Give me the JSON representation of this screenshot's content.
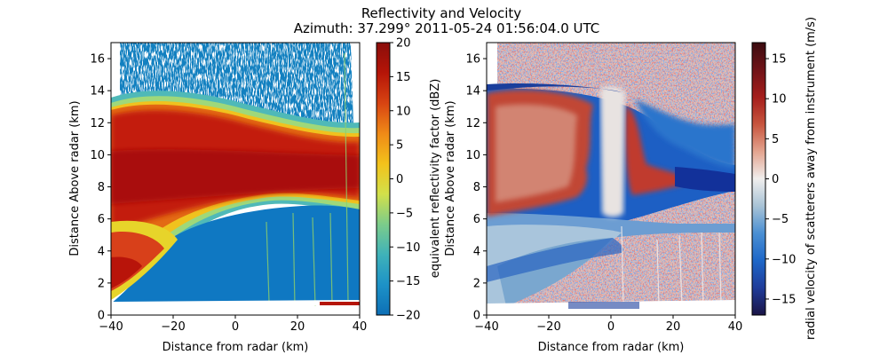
{
  "title_line1": "Reflectivity and Velocity",
  "title_line2": "Azimuth: 37.299°  2011-05-24 01:56:04.0 UTC",
  "chart_data": [
    {
      "type": "heatmap",
      "field": "reflectivity",
      "xlabel": "Distance from radar (km)",
      "ylabel": "Distance Above radar  (km)",
      "xlim": [
        -40,
        40
      ],
      "ylim": [
        0,
        17
      ],
      "xticks": [
        -40,
        -20,
        0,
        20,
        40
      ],
      "yticks": [
        0,
        2,
        4,
        6,
        8,
        10,
        12,
        14,
        16
      ],
      "colorbar": {
        "label": "equivalent reflectivity factor (dBZ)",
        "range": [
          -20,
          20
        ],
        "ticks": [
          -20,
          -15,
          -10,
          -5,
          0,
          5,
          10,
          15,
          20
        ],
        "colors": [
          "#0d6fb6",
          "#1d92c7",
          "#3fb2b9",
          "#7ccc8a",
          "#d2e04a",
          "#f3c21b",
          "#ef8a17",
          "#d84412",
          "#b51508",
          "#8a0d0a"
        ]
      },
      "features": [
        {
          "name": "strong reflectivity band",
          "z_range_km": [
            7,
            12.5
          ],
          "value_dbz": 15
        },
        {
          "name": "weak upper echoes",
          "z_range_km": [
            12.5,
            17
          ],
          "value_dbz": -15
        },
        {
          "name": "low-level echo",
          "z_range_km": [
            1,
            6
          ],
          "value_dbz": -15
        }
      ]
    },
    {
      "type": "heatmap",
      "field": "velocity",
      "xlabel": "Distance from radar (km)",
      "ylabel": "Distance Above radar  (km)",
      "xlim": [
        -40,
        40
      ],
      "ylim": [
        0,
        17
      ],
      "xticks": [
        -40,
        -20,
        0,
        20,
        40
      ],
      "yticks": [
        0,
        2,
        4,
        6,
        8,
        10,
        12,
        14,
        16
      ],
      "colorbar": {
        "label": "radial velocity of scatterers away from instrument (m/s)",
        "range": [
          -17,
          17
        ],
        "ticks": [
          -15,
          -10,
          -5,
          0,
          5,
          10,
          15
        ],
        "colors": [
          "#1a1446",
          "#1f3c9a",
          "#1e67c8",
          "#4a8fd3",
          "#a8c3d6",
          "#f0eeed",
          "#e3a48f",
          "#c7553e",
          "#a51e1c",
          "#701318",
          "#3b0c10"
        ]
      },
      "features": [
        {
          "name": "receding flow left of radar",
          "x_range_km": [
            -40,
            -5
          ],
          "z_range_km": [
            7,
            13.5
          ],
          "value_ms": 10
        },
        {
          "name": "approaching flow right of radar",
          "x_range_km": [
            5,
            40
          ],
          "z_range_km": [
            7,
            13
          ],
          "value_ms": -10
        },
        {
          "name": "approaching low-level flow",
          "x_range_km": [
            -40,
            40
          ],
          "z_range_km": [
            1,
            6
          ],
          "value_ms": -5
        }
      ]
    }
  ]
}
